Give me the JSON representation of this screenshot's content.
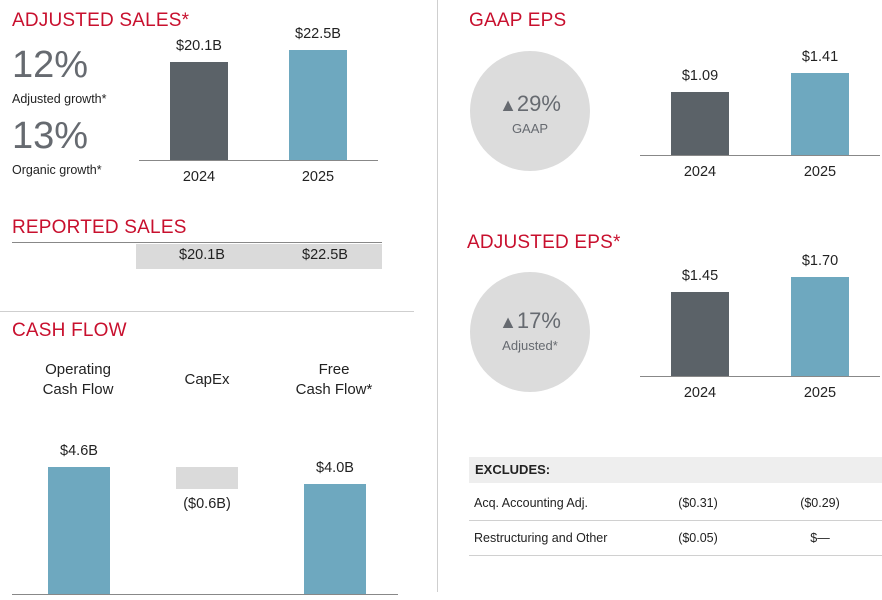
{
  "adjusted_sales": {
    "title": "ADJUSTED SALES*",
    "adjusted_growth_value": "12%",
    "adjusted_growth_label": "Adjusted growth*",
    "organic_growth_value": "13%",
    "organic_growth_label": "Organic growth*"
  },
  "reported_sales": {
    "title": "REPORTED SALES",
    "values": [
      "$20.1B",
      "$22.5B"
    ]
  },
  "cash_flow": {
    "title": "CASH FLOW",
    "columns": [
      {
        "line1": "Operating",
        "line2": "Cash Flow",
        "label": "$4.6B"
      },
      {
        "line1": "CapEx",
        "line2": "",
        "label": "($0.6B)"
      },
      {
        "line1": "Free",
        "line2": "Cash Flow*",
        "label": "$4.0B"
      }
    ]
  },
  "gaap_eps": {
    "title": "GAAP EPS",
    "change": "29%",
    "change_label": "GAAP"
  },
  "adjusted_eps": {
    "title": "ADJUSTED EPS*",
    "change": "17%",
    "change_label": "Adjusted*"
  },
  "excludes": {
    "title": "EXCLUDES:",
    "rows": [
      {
        "label": "Acq. Accounting Adj.",
        "v2024": "($0.31)",
        "v2025": "($0.29)"
      },
      {
        "label": "Restructuring and Other",
        "v2024": "($0.05)",
        "v2025": "$—"
      }
    ]
  },
  "colors": {
    "title_red": "#c8102e",
    "bar_dark": "#5b6268",
    "bar_blue": "#6ea8bf",
    "capex_gray": "#dadada"
  },
  "chart_data": [
    {
      "type": "bar",
      "title": "ADJUSTED SALES*",
      "categories": [
        "2024",
        "2025"
      ],
      "values": [
        20.1,
        22.5
      ],
      "value_labels": [
        "$20.1B",
        "$22.5B"
      ],
      "unit": "$B",
      "ylim": [
        0,
        22.5
      ]
    },
    {
      "type": "bar",
      "title": "GAAP EPS",
      "categories": [
        "2024",
        "2025"
      ],
      "values": [
        1.09,
        1.41
      ],
      "value_labels": [
        "$1.09",
        "$1.41"
      ],
      "unit": "$",
      "ylim": [
        0,
        1.41
      ]
    },
    {
      "type": "bar",
      "title": "ADJUSTED EPS*",
      "categories": [
        "2024",
        "2025"
      ],
      "values": [
        1.45,
        1.7
      ],
      "value_labels": [
        "$1.45",
        "$1.70"
      ],
      "unit": "$",
      "ylim": [
        0,
        1.7
      ]
    },
    {
      "type": "bar",
      "title": "CASH FLOW",
      "categories": [
        "Operating Cash Flow",
        "CapEx",
        "Free Cash Flow*"
      ],
      "values": [
        4.6,
        -0.6,
        4.0
      ],
      "value_labels": [
        "$4.6B",
        "($0.6B)",
        "$4.0B"
      ],
      "unit": "$B",
      "ylim": [
        0,
        4.6
      ]
    }
  ]
}
